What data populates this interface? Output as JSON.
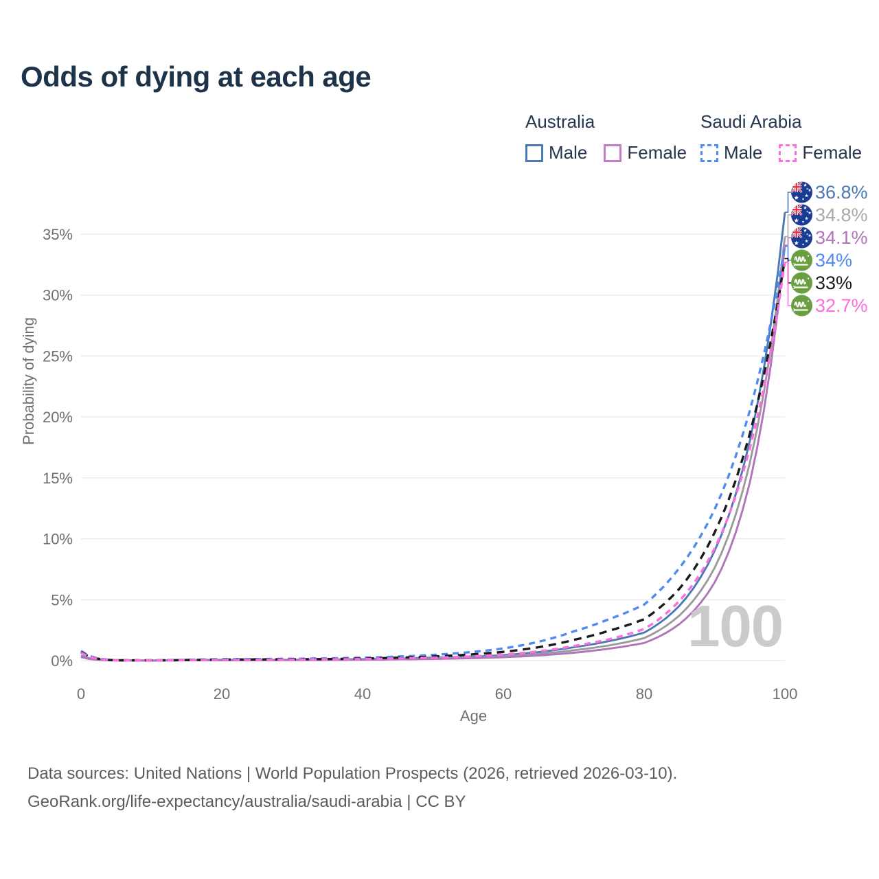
{
  "title": "Odds of dying at each age",
  "legend": {
    "groups": [
      {
        "country": "Australia",
        "line_style": "solid",
        "underline_color": "#9e9e9e",
        "items": [
          {
            "label": "Male",
            "color": "#4a79b6"
          },
          {
            "label": "Female",
            "color": "#c07fc4"
          }
        ]
      },
      {
        "country": "Saudi Arabia",
        "line_style": "dashed",
        "underline_color": "#1a1a1a",
        "items": [
          {
            "label": "Male",
            "color": "#4f8bf2"
          },
          {
            "label": "Female",
            "color": "#fb6fdc"
          }
        ]
      }
    ]
  },
  "chart_data": {
    "type": "line",
    "title": "Odds of dying at each age",
    "xlabel": "Age",
    "ylabel": "Probability of dying",
    "xlim": [
      0,
      100
    ],
    "ylim": [
      0,
      37
    ],
    "grid": "horizontal",
    "legend_position": "top-right",
    "x_tick_values": [
      0,
      20,
      40,
      60,
      80,
      100
    ],
    "x_tick_labels": [
      "0",
      "20",
      "40",
      "60",
      "80",
      "100"
    ],
    "y_tick_values": [
      0,
      5,
      10,
      15,
      20,
      25,
      30,
      35
    ],
    "y_tick_labels": [
      "0%",
      "5%",
      "10%",
      "15%",
      "20%",
      "25%",
      "30%",
      "35%"
    ],
    "ages": [
      0,
      5,
      10,
      15,
      20,
      25,
      30,
      35,
      40,
      45,
      50,
      55,
      60,
      65,
      70,
      75,
      80,
      85,
      90,
      95,
      100
    ],
    "series": [
      {
        "id": "aus_male",
        "country": "Australia",
        "sex": "Male",
        "color": "#4a79b6",
        "dashed": false,
        "values": [
          0.4,
          0.02,
          0.01,
          0.04,
          0.07,
          0.06,
          0.07,
          0.09,
          0.12,
          0.17,
          0.25,
          0.3,
          0.45,
          0.7,
          1.1,
          1.6,
          2.3,
          4.5,
          9.0,
          18.0,
          36.8
        ]
      },
      {
        "id": "aus_avg",
        "country": "Australia",
        "sex": "All",
        "color": "#9b9b9b",
        "dashed": false,
        "values": [
          0.35,
          0.02,
          0.01,
          0.03,
          0.05,
          0.05,
          0.05,
          0.07,
          0.09,
          0.13,
          0.19,
          0.25,
          0.36,
          0.55,
          0.85,
          1.25,
          1.85,
          3.7,
          7.6,
          16.2,
          34.8
        ]
      },
      {
        "id": "aus_female",
        "country": "Australia",
        "sex": "Female",
        "color": "#b273bd",
        "dashed": false,
        "values": [
          0.3,
          0.01,
          0.01,
          0.02,
          0.03,
          0.03,
          0.04,
          0.05,
          0.07,
          0.1,
          0.14,
          0.19,
          0.28,
          0.42,
          0.65,
          0.98,
          1.45,
          3.0,
          6.4,
          14.6,
          34.1
        ]
      },
      {
        "id": "sau_male",
        "country": "Saudi Arabia",
        "sex": "Male",
        "color": "#4f8bf2",
        "dashed": true,
        "values": [
          0.8,
          0.04,
          0.03,
          0.07,
          0.12,
          0.13,
          0.15,
          0.18,
          0.24,
          0.33,
          0.47,
          0.68,
          1.0,
          1.55,
          2.4,
          3.4,
          4.6,
          7.6,
          12.4,
          20.5,
          34.0
        ]
      },
      {
        "id": "sau_avg",
        "country": "Saudi Arabia",
        "sex": "All",
        "color": "#1a1a1a",
        "dashed": true,
        "values": [
          0.7,
          0.03,
          0.02,
          0.05,
          0.09,
          0.1,
          0.11,
          0.13,
          0.17,
          0.24,
          0.34,
          0.49,
          0.72,
          1.1,
          1.7,
          2.45,
          3.4,
          5.9,
          10.5,
          18.6,
          33.0
        ]
      },
      {
        "id": "sau_female",
        "country": "Saudi Arabia",
        "sex": "Female",
        "color": "#fb6fdc",
        "dashed": true,
        "values": [
          0.65,
          0.03,
          0.02,
          0.04,
          0.06,
          0.07,
          0.08,
          0.1,
          0.13,
          0.17,
          0.24,
          0.34,
          0.5,
          0.76,
          1.2,
          1.75,
          2.6,
          4.9,
          9.2,
          17.4,
          32.7
        ]
      }
    ]
  },
  "end_labels": [
    {
      "value": "36.8%",
      "color": "#4a79b6",
      "flag": "australia",
      "series_id": "aus_male"
    },
    {
      "value": "34.8%",
      "color": "#a9a9a9",
      "flag": "australia",
      "series_id": "aus_avg"
    },
    {
      "value": "34.1%",
      "color": "#b273bd",
      "flag": "australia",
      "series_id": "aus_female"
    },
    {
      "value": "34%",
      "color": "#4f8bf2",
      "flag": "saudi",
      "series_id": "sau_male"
    },
    {
      "value": "33%",
      "color": "#1a1a1a",
      "flag": "saudi",
      "series_id": "sau_avg"
    },
    {
      "value": "32.7%",
      "color": "#fb6fdc",
      "flag": "saudi",
      "series_id": "sau_female"
    }
  ],
  "watermark": "100",
  "footer": {
    "line1": "Data sources: United Nations | World Population Prospects (2026, retrieved 2026-03-10).",
    "line2": "GeoRank.org/life-expectancy/australia/saudi-arabia | CC BY"
  }
}
